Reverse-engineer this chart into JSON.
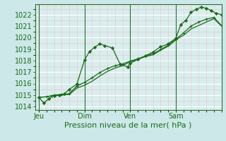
{
  "bg_color": "#cce8e8",
  "plot_bg_color": "#d8eeee",
  "grid_major_color": "#ffffff",
  "grid_minor_color": "#e8c8c8",
  "line_color": "#1a6b1a",
  "xlabel": "Pression niveau de la mer( hPa )",
  "xlabel_fontsize": 8,
  "tick_fontsize": 7,
  "yticks": [
    1014,
    1015,
    1016,
    1017,
    1018,
    1019,
    1020,
    1021,
    1022
  ],
  "ylim": [
    1013.7,
    1022.9
  ],
  "xtick_labels": [
    "Jeu",
    "Dim",
    "Ven",
    "Sam"
  ],
  "xtick_positions": [
    0,
    36,
    72,
    108
  ],
  "xlim": [
    -3,
    144
  ],
  "series1": {
    "x": [
      0,
      4,
      8,
      12,
      16,
      20,
      24,
      30,
      36,
      40,
      44,
      48,
      52,
      58,
      64,
      70,
      72,
      78,
      84,
      90,
      96,
      102,
      108,
      112,
      116,
      120,
      124,
      128,
      132,
      136,
      140,
      144
    ],
    "y": [
      1014.8,
      1014.3,
      1014.7,
      1014.95,
      1015.0,
      1015.1,
      1015.5,
      1015.95,
      1018.05,
      1018.8,
      1019.15,
      1019.45,
      1019.3,
      1019.1,
      1017.7,
      1017.45,
      1017.75,
      1018.1,
      1018.4,
      1018.75,
      1019.2,
      1019.45,
      1019.95,
      1021.15,
      1021.5,
      1022.2,
      1022.45,
      1022.65,
      1022.55,
      1022.35,
      1022.1,
      1022.0
    ]
  },
  "series2": {
    "x": [
      0,
      6,
      12,
      18,
      24,
      30,
      36,
      42,
      48,
      54,
      60,
      66,
      72,
      78,
      84,
      90,
      96,
      102,
      108,
      114,
      120,
      126,
      132,
      138,
      144
    ],
    "y": [
      1014.8,
      1014.85,
      1015.0,
      1015.05,
      1015.1,
      1015.8,
      1016.1,
      1016.5,
      1016.95,
      1017.3,
      1017.55,
      1017.7,
      1017.95,
      1018.15,
      1018.4,
      1018.6,
      1018.95,
      1019.35,
      1019.85,
      1020.4,
      1021.0,
      1021.35,
      1021.6,
      1021.75,
      1021.05
    ]
  },
  "series3": {
    "x": [
      0,
      6,
      12,
      18,
      24,
      30,
      36,
      42,
      48,
      54,
      60,
      66,
      72,
      78,
      84,
      90,
      96,
      102,
      108,
      114,
      120,
      126,
      132,
      138,
      144
    ],
    "y": [
      1014.8,
      1014.85,
      1014.95,
      1015.0,
      1015.05,
      1015.6,
      1015.85,
      1016.2,
      1016.65,
      1017.05,
      1017.35,
      1017.55,
      1017.9,
      1018.1,
      1018.35,
      1018.5,
      1018.9,
      1019.25,
      1019.8,
      1020.2,
      1020.75,
      1021.05,
      1021.35,
      1021.65,
      1021.0
    ]
  },
  "series_dotted": {
    "x": [
      0,
      4,
      8,
      12,
      16,
      20,
      24,
      28,
      32,
      36
    ],
    "y": [
      1014.8,
      1014.35,
      1014.65,
      1014.85,
      1014.95,
      1015.0,
      1015.2,
      1015.55,
      1015.85,
      1016.1
    ]
  },
  "vline_color": "#2d6b2d",
  "vline_positions": [
    0,
    36,
    72,
    108
  ]
}
